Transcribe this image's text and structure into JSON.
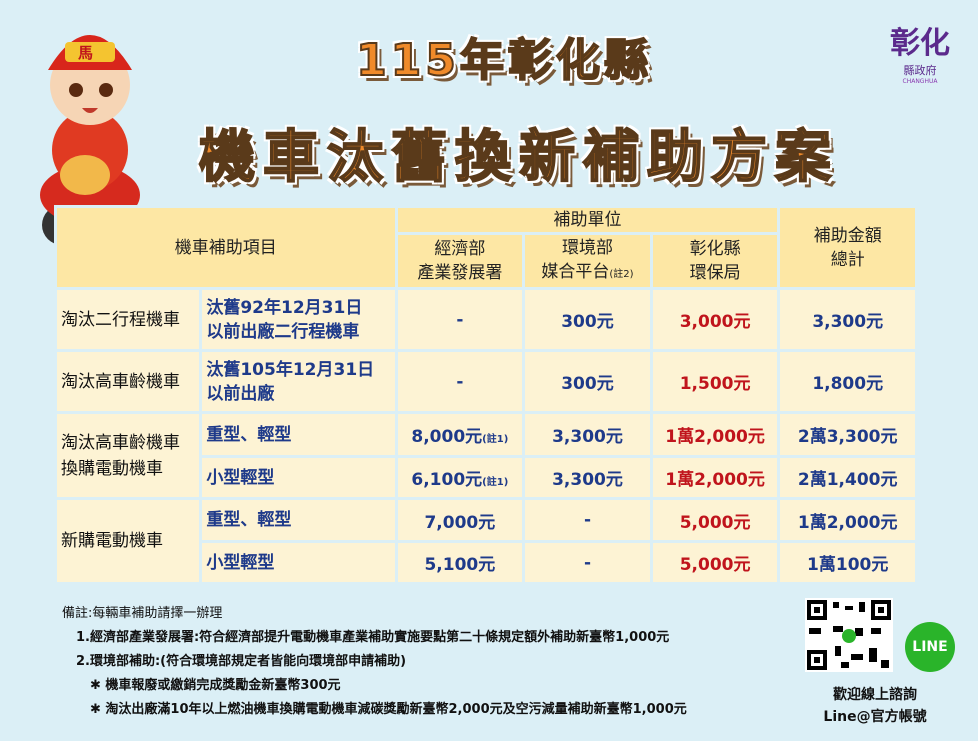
{
  "title_line1": "115年彰化縣",
  "title_line2": "機車汰舊換新補助方案",
  "logo": {
    "text": "彰化",
    "sub": "縣政府",
    "en": "CHANGHUA"
  },
  "mascot": {
    "hat_text": "馬"
  },
  "table": {
    "header": {
      "item": "機車補助項目",
      "unit": "補助單位",
      "total_l1": "補助金額",
      "total_l2": "總計",
      "col1_l1": "經濟部",
      "col1_l2": "產業發展署",
      "col2_l1": "環境部",
      "col2_l2": "媒合平台",
      "col2_note": "(註2)",
      "col3_l1": "彰化縣",
      "col3_l2": "環保局"
    },
    "rows": [
      {
        "name": "淘汰二行程機車",
        "sub_l1": "汰舊92年12月31日",
        "sub_l2": "以前出廠二行程機車",
        "c1": "-",
        "c2": "300元",
        "c3": "3,000元",
        "total": "3,300元"
      },
      {
        "name": "淘汰高車齡機車",
        "sub_l1": "汰舊105年12月31日",
        "sub_l2": "以前出廠",
        "c1": "-",
        "c2": "300元",
        "c3": "1,500元",
        "total": "1,800元"
      },
      {
        "name_l1": "淘汰高車齡機車",
        "name_l2": "換購電動機車",
        "sub": "重型、輕型",
        "c1": "8,000元",
        "c1_note": "(註1)",
        "c2": "3,300元",
        "c3": "1萬2,000元",
        "total": "2萬3,300元"
      },
      {
        "sub": "小型輕型",
        "c1": "6,100元",
        "c1_note": "(註1)",
        "c2": "3,300元",
        "c3": "1萬2,000元",
        "total": "2萬1,400元"
      },
      {
        "name": "新購電動機車",
        "sub": "重型、輕型",
        "c1": "7,000元",
        "c2": "-",
        "c3": "5,000元",
        "total": "1萬2,000元"
      },
      {
        "sub": "小型輕型",
        "c1": "5,100元",
        "c2": "-",
        "c3": "5,000元",
        "total": "1萬100元"
      }
    ]
  },
  "notes": [
    "備註:每輛車補助請擇一辦理",
    "1.經濟部產業發展署:符合經濟部提升電動機車產業補助實施要點第二十條規定額外補助新臺幣1,000元",
    "2.環境部補助:(符合環境部規定者皆能向環境部申請補助)",
    "✱ 機車報廢或繳銷完成獎勵金新臺幣300元",
    "✱ 淘汰出廠滿10年以上燃油機車換購電動機車減碳獎勵新臺幣2,000元及空污減量補助新臺幣1,000元"
  ],
  "contact": {
    "line_label": "LINE",
    "l1": "歡迎線上諮詢",
    "l2": "Line@官方帳號"
  }
}
